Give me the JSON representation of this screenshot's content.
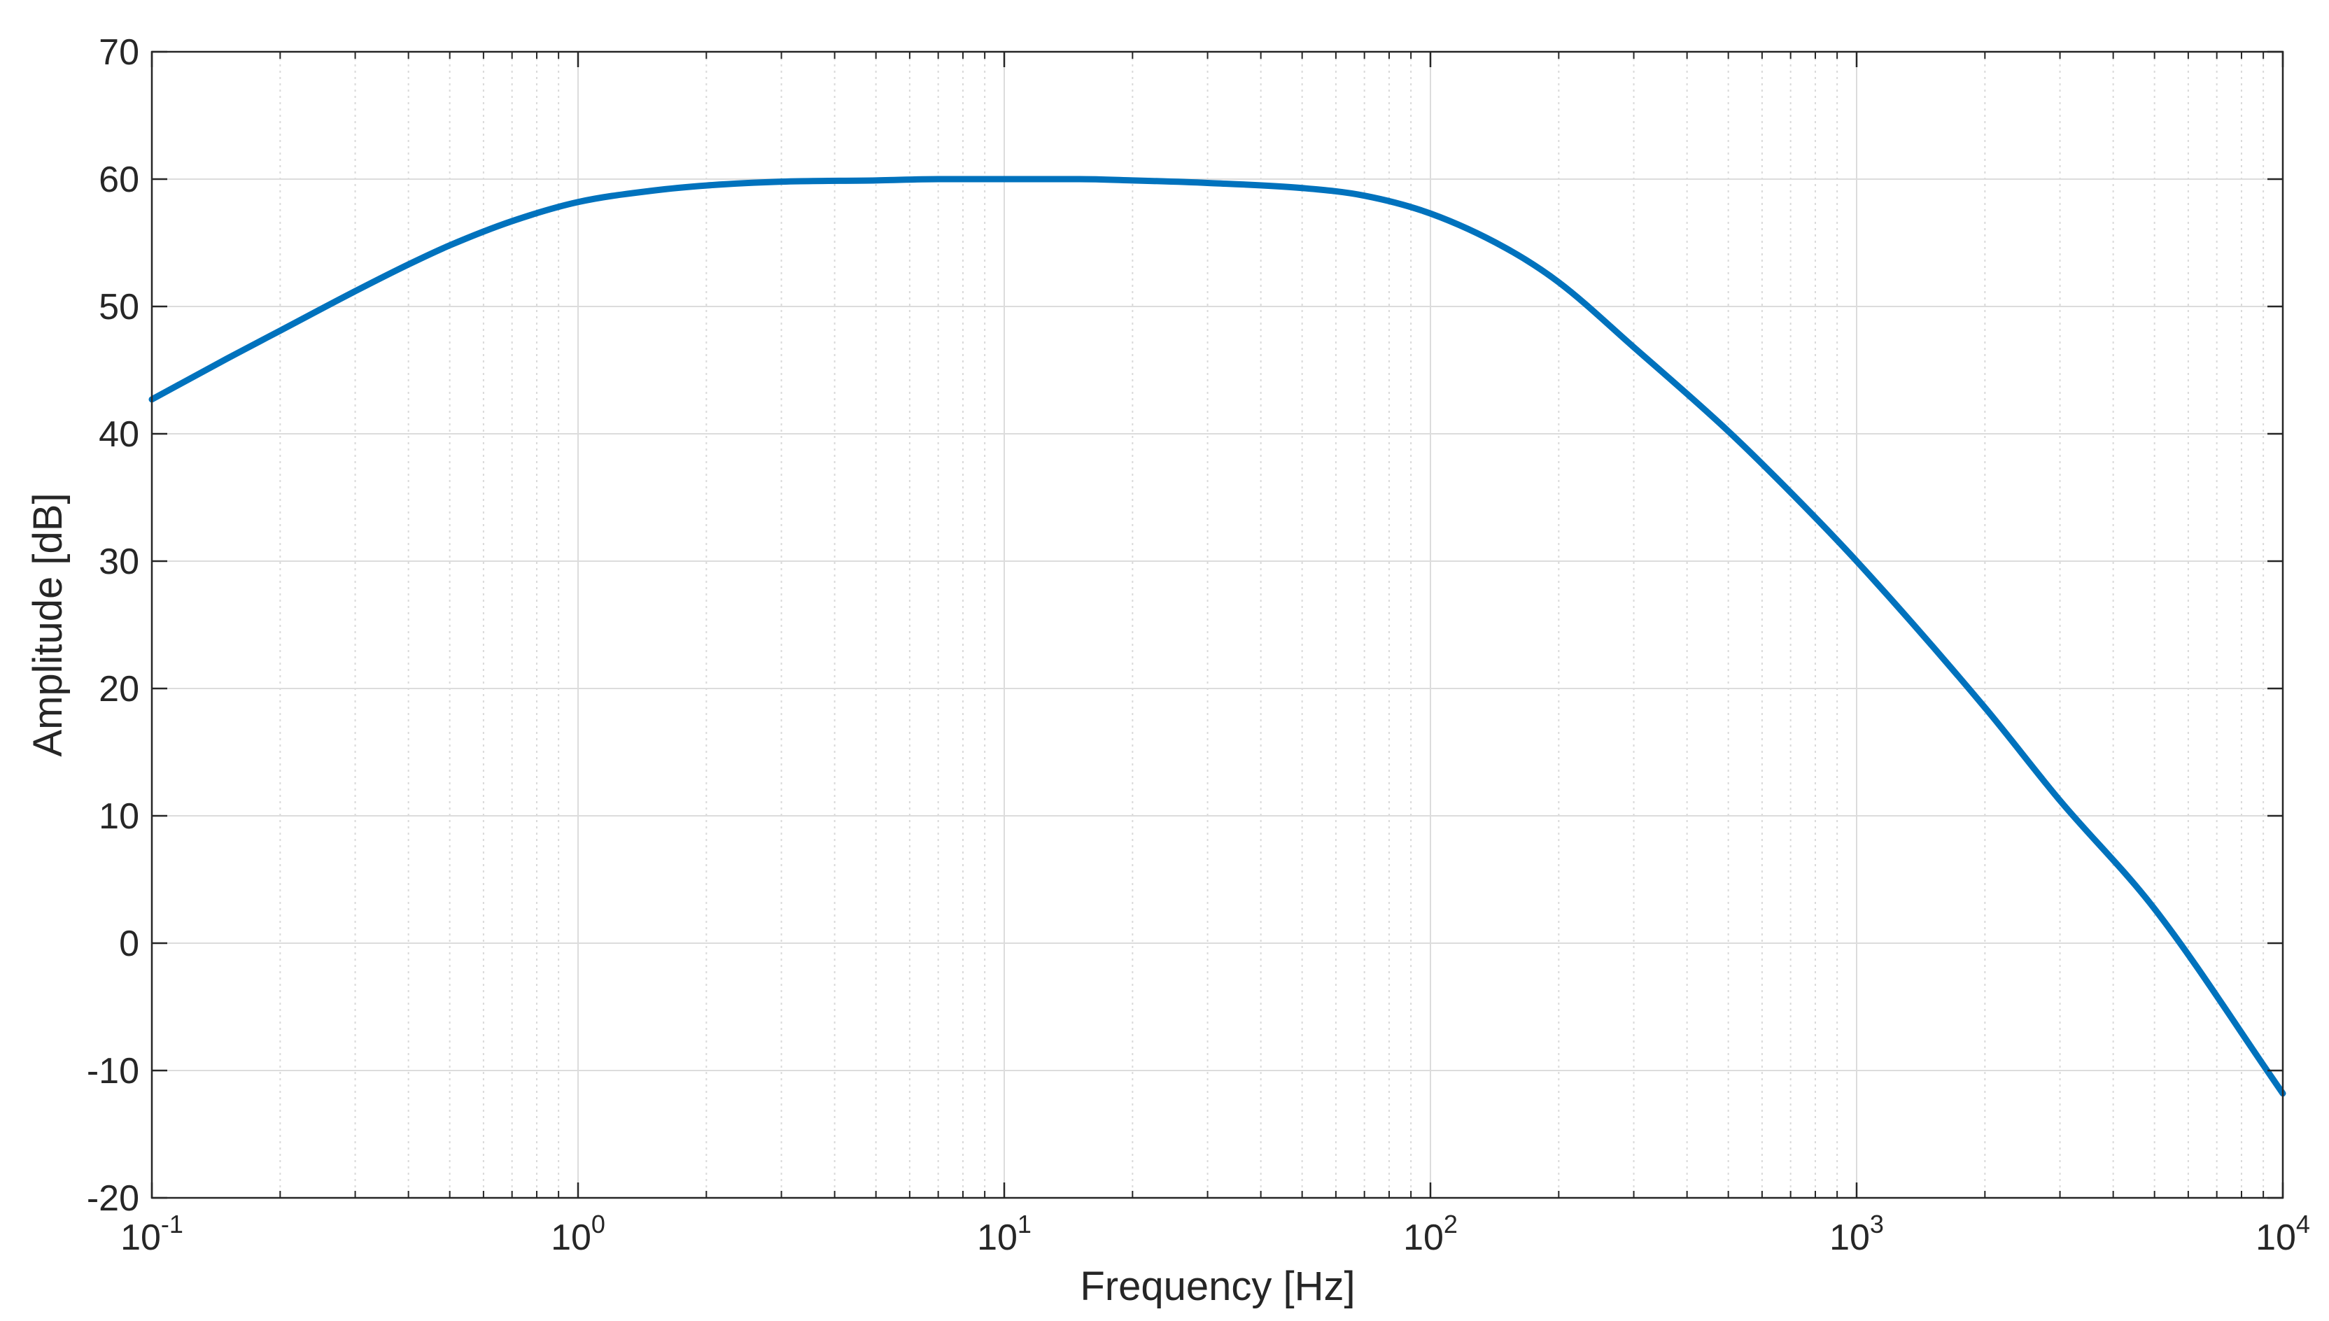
{
  "chart_data": {
    "type": "line",
    "title": "",
    "xlabel": "Frequency [Hz]",
    "ylabel": "Amplitude [dB]",
    "xscale": "log",
    "xlim": [
      0.1,
      10000
    ],
    "ylim": [
      -20,
      70
    ],
    "grid": true,
    "minor_grid": true,
    "x_ticks": [
      {
        "value": 0.1,
        "base": "10",
        "exp": "-1"
      },
      {
        "value": 1,
        "base": "10",
        "exp": "0"
      },
      {
        "value": 10,
        "base": "10",
        "exp": "1"
      },
      {
        "value": 100,
        "base": "10",
        "exp": "2"
      },
      {
        "value": 1000,
        "base": "10",
        "exp": "3"
      },
      {
        "value": 10000,
        "base": "10",
        "exp": "4"
      }
    ],
    "y_ticks": [
      {
        "value": -20,
        "label": "-20"
      },
      {
        "value": -10,
        "label": "-10"
      },
      {
        "value": 0,
        "label": "0"
      },
      {
        "value": 10,
        "label": "10"
      },
      {
        "value": 20,
        "label": "20"
      },
      {
        "value": 30,
        "label": "30"
      },
      {
        "value": 40,
        "label": "40"
      },
      {
        "value": 50,
        "label": "50"
      },
      {
        "value": 60,
        "label": "60"
      },
      {
        "value": 70,
        "label": "70"
      }
    ],
    "series": [
      {
        "name": "amplitude",
        "color": "#0072BD",
        "x": [
          0.1,
          0.15,
          0.2,
          0.3,
          0.4,
          0.5,
          0.7,
          1,
          1.5,
          2,
          3,
          5,
          7,
          10,
          15,
          20,
          30,
          50,
          70,
          100,
          150,
          200,
          300,
          500,
          700,
          1000,
          2000,
          3000,
          5000,
          10000
        ],
        "y": [
          42.7,
          45.9,
          48.1,
          51.2,
          53.3,
          54.8,
          56.7,
          58.2,
          59.1,
          59.5,
          59.8,
          59.9,
          60.0,
          60.0,
          60.0,
          59.9,
          59.7,
          59.3,
          58.7,
          57.3,
          54.6,
          51.9,
          46.8,
          40.2,
          35.4,
          30.0,
          18.5,
          11.2,
          2.7,
          -11.8
        ]
      }
    ]
  }
}
